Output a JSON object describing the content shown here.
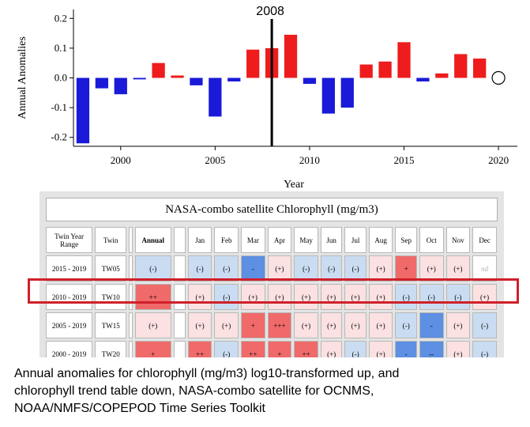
{
  "chart_data": {
    "type": "bar",
    "ylabel": "Annual Anomalies",
    "xlabel": "Year",
    "ylim": [
      -0.23,
      0.23
    ],
    "xlim": [
      1997.5,
      2021
    ],
    "yticks": [
      "0.2",
      "0.1",
      "0.0",
      "-0.1",
      "-0.2"
    ],
    "xticks": [
      "2000",
      "2005",
      "2010",
      "2015",
      "2020"
    ],
    "series": [
      {
        "x": [
          1998,
          1999,
          2000,
          2001,
          2002,
          2003,
          2004,
          2005,
          2006,
          2007,
          2008,
          2009,
          2010,
          2011,
          2012,
          2013,
          2014,
          2015,
          2016,
          2017,
          2018,
          2019
        ],
        "values": [
          -0.22,
          -0.035,
          -0.055,
          -0.005,
          0.05,
          0.008,
          -0.025,
          -0.13,
          -0.012,
          0.095,
          0.1,
          0.145,
          -0.02,
          -0.12,
          -0.1,
          0.045,
          0.055,
          0.12,
          -0.012,
          0.015,
          0.08,
          0.065
        ]
      }
    ],
    "colors": {
      "positive": "#ee1c1c",
      "negative": "#1a1ad8"
    },
    "marker_line": {
      "x": 2008,
      "label": "2008"
    },
    "open_point": {
      "x": 2020,
      "value": 0.0
    }
  },
  "table": {
    "title": "NASA-combo satellite Chlorophyll (mg/m3)",
    "headers": [
      "Twin Year Range",
      "Twin",
      "",
      "Annual",
      "",
      "Jan",
      "Feb",
      "Mar",
      "Apr",
      "May",
      "Jun",
      "Jul",
      "Aug",
      "Sep",
      "Oct",
      "Nov",
      "Dec"
    ],
    "rows": [
      {
        "range": "2015 - 2019",
        "twin": "TW05",
        "annual": "(-)",
        "months": [
          "(-)",
          "(-)",
          "-",
          "(+)",
          "(-)",
          "(-)",
          "(-)",
          "(+)",
          "+",
          "(+)",
          "(+)",
          "nd"
        ]
      },
      {
        "range": "2010 - 2019",
        "twin": "TW10",
        "annual": "++",
        "months": [
          "(+)",
          "(-)",
          "(+)",
          "(+)",
          "(+)",
          "(+)",
          "(+)",
          "(+)",
          "(-)",
          "(-)",
          "(-)",
          "(+)"
        ]
      },
      {
        "range": "2005 - 2019",
        "twin": "TW15",
        "annual": "(+)",
        "months": [
          "(+)",
          "(+)",
          "+",
          "+++",
          "(+)",
          "(+)",
          "(+)",
          "(+)",
          "(-)",
          "-",
          "(+)",
          "(-)"
        ]
      },
      {
        "range": "2000 - 2019",
        "twin": "TW20",
        "annual": "+",
        "months": [
          "++",
          "(-)",
          "++",
          "+",
          "++",
          "(+)",
          "(-)",
          "(+)",
          "-",
          "--",
          "(+)",
          "(-)"
        ]
      }
    ]
  },
  "caption": {
    "line1": "Annual anomalies for chlorophyll (mg/m3) log10-transformed up, and",
    "line2": "chlorophyll trend table down, NASA-combo  satellite for OCNMS,",
    "line3": "NOAA/NMFS/COPEPOD  Time Series Toolkit"
  }
}
